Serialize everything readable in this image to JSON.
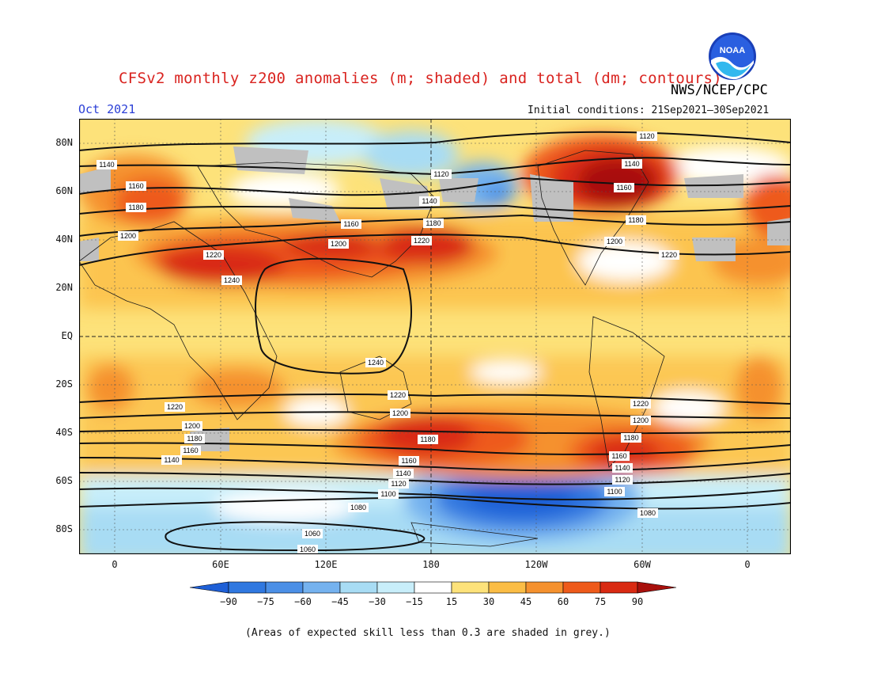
{
  "header": {
    "title": "CFSv2 monthly z200 anomalies (m; shaded) and total (dm; contours)",
    "agency": "NWS/NCEP/CPC",
    "month": "Oct 2021",
    "initial_conditions": "Initial conditions: 21Sep2021–30Sep2021"
  },
  "logo": {
    "text": "NOAA",
    "icon": "noaa-logo-icon"
  },
  "axes": {
    "lat_labels": [
      "80N",
      "60N",
      "40N",
      "20N",
      "EQ",
      "20S",
      "40S",
      "60S",
      "80S"
    ],
    "lon_labels": [
      "0",
      "60E",
      "120E",
      "180",
      "120W",
      "60W",
      "0"
    ]
  },
  "colorbar": {
    "labels": [
      "−90",
      "−75",
      "−60",
      "−45",
      "−30",
      "−15",
      "15",
      "30",
      "45",
      "60",
      "75",
      "90"
    ],
    "colors": [
      "#1e5fd6",
      "#3078e0",
      "#4b8fe6",
      "#75b2ef",
      "#a8dcf4",
      "#c8eefa",
      "#ffffff",
      "#fde27a",
      "#fbbd45",
      "#f5912e",
      "#ee5a1a",
      "#d92a12",
      "#a8100c"
    ]
  },
  "contour_labels": [
    "1120",
    "1140",
    "1160",
    "1180",
    "1200",
    "1220",
    "1240",
    "1100",
    "1080",
    "1060"
  ],
  "footnote": "(Areas of expected skill less than 0.3 are shaded in grey.)"
}
